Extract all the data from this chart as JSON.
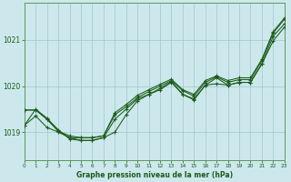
{
  "title": "Graphe pression niveau de la mer (hPa)",
  "background_color": "#cde8ec",
  "plot_bg_color": "#cde8ec",
  "grid_color": "#9dc8cc",
  "line_color": "#1a5c1a",
  "xlim": [
    0,
    23
  ],
  "ylim": [
    1018.4,
    1021.8
  ],
  "yticks": [
    1019,
    1020,
    1021
  ],
  "xticks": [
    0,
    1,
    2,
    3,
    4,
    5,
    6,
    7,
    8,
    9,
    10,
    11,
    12,
    13,
    14,
    15,
    16,
    17,
    18,
    19,
    20,
    21,
    22,
    23
  ],
  "series": [
    [
      1019.15,
      1019.5,
      1019.3,
      1019.05,
      1018.85,
      1018.82,
      1018.82,
      1018.88,
      1019.0,
      1019.38,
      1019.68,
      1019.82,
      1019.92,
      1020.08,
      1019.82,
      1019.7,
      1020.02,
      1020.05,
      1020.02,
      1020.08,
      1020.08,
      1020.48,
      1020.98,
      1021.28
    ],
    [
      1019.15,
      1019.35,
      1019.1,
      1019.0,
      1018.88,
      1018.82,
      1018.82,
      1018.88,
      1019.28,
      1019.5,
      1019.72,
      1019.82,
      1019.95,
      1020.1,
      1019.82,
      1019.72,
      1020.02,
      1020.18,
      1020.02,
      1020.08,
      1020.08,
      1020.48,
      1021.08,
      1021.35
    ],
    [
      1019.48,
      1019.48,
      1019.28,
      1019.02,
      1018.88,
      1018.88,
      1018.88,
      1018.92,
      1019.38,
      1019.55,
      1019.75,
      1019.88,
      1020.0,
      1020.12,
      1019.9,
      1019.78,
      1020.08,
      1020.2,
      1020.08,
      1020.14,
      1020.14,
      1020.55,
      1021.15,
      1021.45
    ],
    [
      1019.48,
      1019.48,
      1019.28,
      1019.02,
      1018.92,
      1018.88,
      1018.88,
      1018.92,
      1019.42,
      1019.6,
      1019.8,
      1019.92,
      1020.04,
      1020.15,
      1019.92,
      1019.82,
      1020.12,
      1020.22,
      1020.12,
      1020.18,
      1020.18,
      1020.58,
      1021.18,
      1021.48
    ]
  ],
  "figsize": [
    3.2,
    2.0
  ],
  "dpi": 100
}
